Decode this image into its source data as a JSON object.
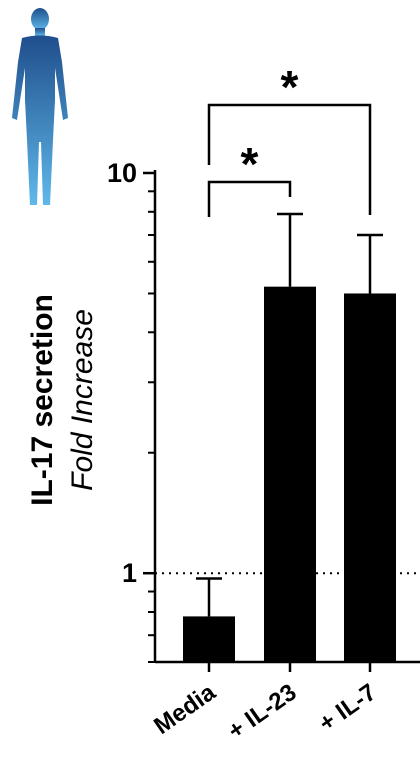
{
  "chart_data": {
    "type": "bar",
    "categories": [
      "Media",
      "+ IL-23",
      "+ IL-7"
    ],
    "values": [
      0.78,
      5.2,
      5.0
    ],
    "error_upper": [
      0.97,
      7.9,
      7.0
    ],
    "ylabel": "IL-17 secretion",
    "ylabel_sub": "Fold Increase",
    "yscale": "log",
    "ylim": [
      0.6,
      10
    ],
    "yticks": [
      {
        "value": 1,
        "label": "1"
      },
      {
        "value": 10,
        "label": "10"
      }
    ],
    "reference_line": 1,
    "significance": [
      {
        "from": "Media",
        "to": "+ IL-23",
        "label": "*"
      },
      {
        "from": "Media",
        "to": "+ IL-7",
        "label": "*"
      }
    ],
    "icon": "human-body-icon",
    "colors": {
      "bars": "#000000",
      "icon_top": "#1f4e8c",
      "icon_bottom": "#5fb8ea"
    }
  }
}
